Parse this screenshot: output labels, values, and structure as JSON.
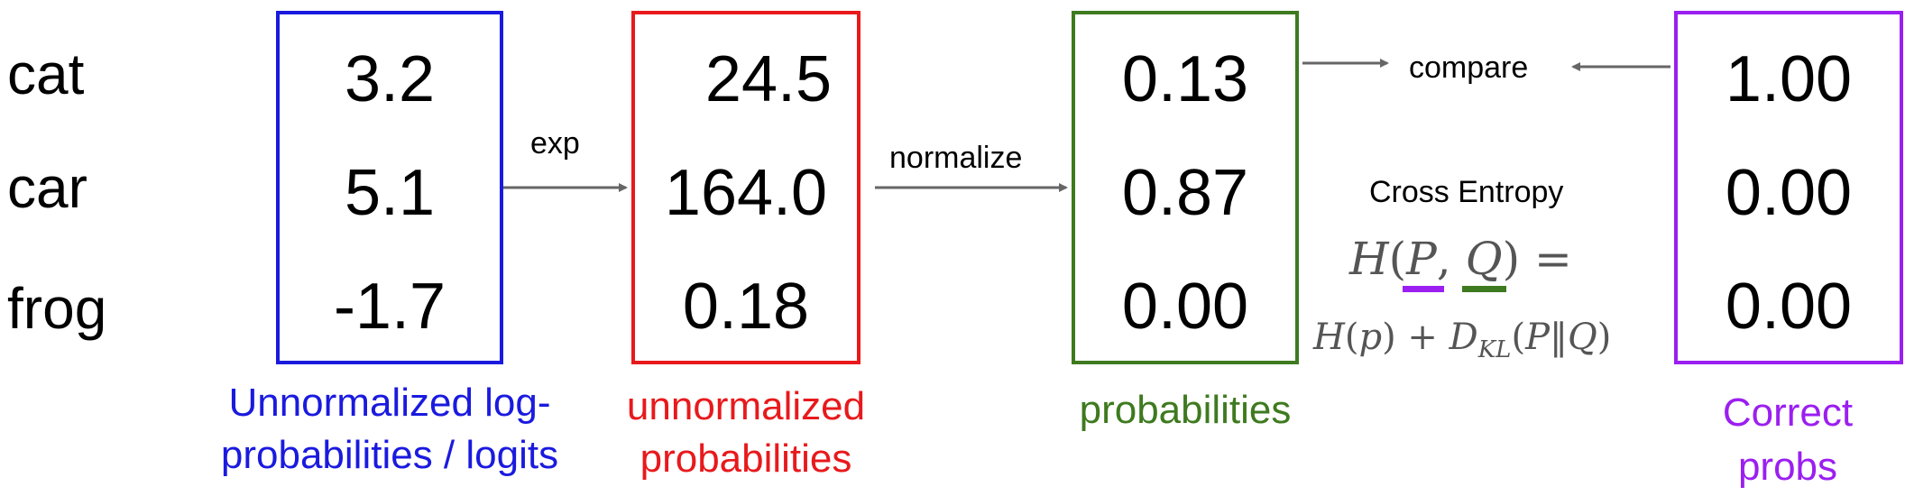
{
  "classes": [
    "cat",
    "car",
    "frog"
  ],
  "logits": {
    "values": [
      "3.2",
      "5.1",
      "-1.7"
    ],
    "caption_line1": "Unnormalized log-",
    "caption_line2": "probabilities / logits",
    "color": "#1a1adf"
  },
  "unnormalized": {
    "values": [
      "24.5",
      "164.0",
      "0.18"
    ],
    "caption_line1": "unnormalized",
    "caption_line2": "probabilities",
    "color": "#e8191c"
  },
  "probabilities": {
    "values": [
      "0.13",
      "0.87",
      "0.00"
    ],
    "caption": "probabilities",
    "color": "#3e7a1f"
  },
  "correct": {
    "values": [
      "1.00",
      "0.00",
      "0.00"
    ],
    "caption_line1": "Correct",
    "caption_line2": "probs",
    "color": "#9b1ff0"
  },
  "arrows": {
    "exp_label": "exp",
    "normalize_label": "normalize",
    "compare_label": "compare"
  },
  "cross_entropy": {
    "title": "Cross Entropy",
    "formula_line1": "H(P, Q) =",
    "formula_line2": "H(p) + D_KL(P‖Q)",
    "p_underline_color": "#9b1ff0",
    "q_underline_color": "#3e7a1f"
  }
}
